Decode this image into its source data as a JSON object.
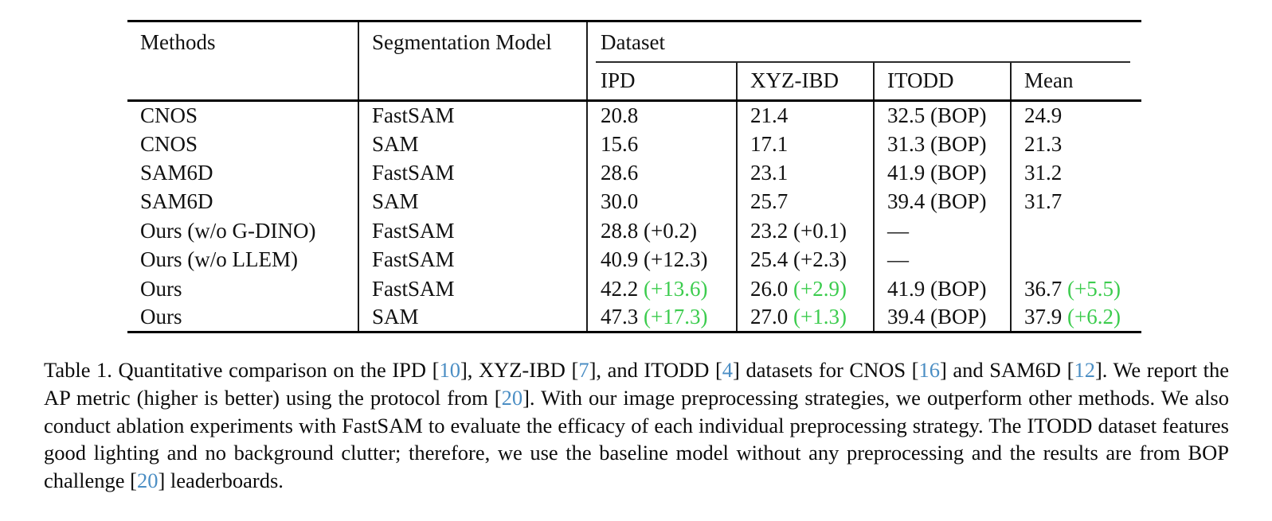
{
  "colors": {
    "improvement_green": "#3ccc4e",
    "citation_blue": "#4b8ec4",
    "rule_black": "#000000"
  },
  "table": {
    "header": {
      "col1": "Methods",
      "col2": "Segmentation Model",
      "group": "Dataset",
      "subcols": [
        "IPD",
        "XYZ-IBD",
        "ITODD",
        "Mean"
      ]
    },
    "rows": [
      {
        "method": "CNOS",
        "seg": "FastSAM",
        "cells": [
          {
            "v": "20.8"
          },
          {
            "v": "21.4"
          },
          {
            "v": "32.5 (BOP)"
          },
          {
            "v": "24.9"
          }
        ]
      },
      {
        "method": "CNOS",
        "seg": "SAM",
        "cells": [
          {
            "v": "15.6"
          },
          {
            "v": "17.1"
          },
          {
            "v": "31.3 (BOP)"
          },
          {
            "v": "21.3"
          }
        ]
      },
      {
        "method": "SAM6D",
        "seg": "FastSAM",
        "cells": [
          {
            "v": "28.6"
          },
          {
            "v": "23.1"
          },
          {
            "v": "41.9 (BOP)"
          },
          {
            "v": "31.2"
          }
        ]
      },
      {
        "method": "SAM6D",
        "seg": "SAM",
        "cells": [
          {
            "v": "30.0"
          },
          {
            "v": "25.7"
          },
          {
            "v": "39.4 (BOP)"
          },
          {
            "v": "31.7"
          }
        ]
      },
      {
        "method": "Ours (w/o G-DINO)",
        "seg": "FastSAM",
        "cells": [
          {
            "v": "28.8",
            "d": "(+0.2)",
            "green": false
          },
          {
            "v": "23.2",
            "d": "(+0.1)",
            "green": false
          },
          {
            "v": "—"
          },
          {
            "v": ""
          }
        ]
      },
      {
        "method": "Ours (w/o LLEM)",
        "seg": "FastSAM",
        "cells": [
          {
            "v": "40.9",
            "d": "(+12.3)",
            "green": false
          },
          {
            "v": "25.4",
            "d": "(+2.3)",
            "green": false
          },
          {
            "v": "—"
          },
          {
            "v": ""
          }
        ]
      },
      {
        "method": "Ours",
        "seg": "FastSAM",
        "cells": [
          {
            "v": "42.2",
            "d": "(+13.6)",
            "green": true
          },
          {
            "v": "26.0",
            "d": "(+2.9)",
            "green": true
          },
          {
            "v": "41.9 (BOP)"
          },
          {
            "v": "36.7",
            "d": "(+5.5)",
            "green": true
          }
        ]
      },
      {
        "method": "Ours",
        "seg": "SAM",
        "cells": [
          {
            "v": "47.3",
            "d": "(+17.3)",
            "green": true
          },
          {
            "v": "27.0",
            "d": "(+1.3)",
            "green": true
          },
          {
            "v": "39.4 (BOP)"
          },
          {
            "v": "37.9",
            "d": "(+6.2)",
            "green": true
          }
        ]
      }
    ]
  },
  "caption": {
    "segments": [
      {
        "t": "Table 1. Quantitative comparison on the IPD ["
      },
      {
        "t": "10",
        "c": true
      },
      {
        "t": "], XYZ-IBD ["
      },
      {
        "t": "7",
        "c": true
      },
      {
        "t": "], and ITODD ["
      },
      {
        "t": "4",
        "c": true
      },
      {
        "t": "] datasets for CNOS ["
      },
      {
        "t": "16",
        "c": true
      },
      {
        "t": "] and SAM6D ["
      },
      {
        "t": "12",
        "c": true
      },
      {
        "t": "]. We report the AP metric (higher is better) using the protocol from ["
      },
      {
        "t": "20",
        "c": true
      },
      {
        "t": "]. With our image preprocessing strategies, we outperform other methods. We also conduct ablation experiments with FastSAM to evaluate the efficacy of each individual preprocessing strategy. The ITODD dataset features good lighting and no background clutter; therefore, we use the baseline model without any preprocessing and the results are from BOP challenge ["
      },
      {
        "t": "20",
        "c": true
      },
      {
        "t": "] leaderboards."
      }
    ]
  }
}
